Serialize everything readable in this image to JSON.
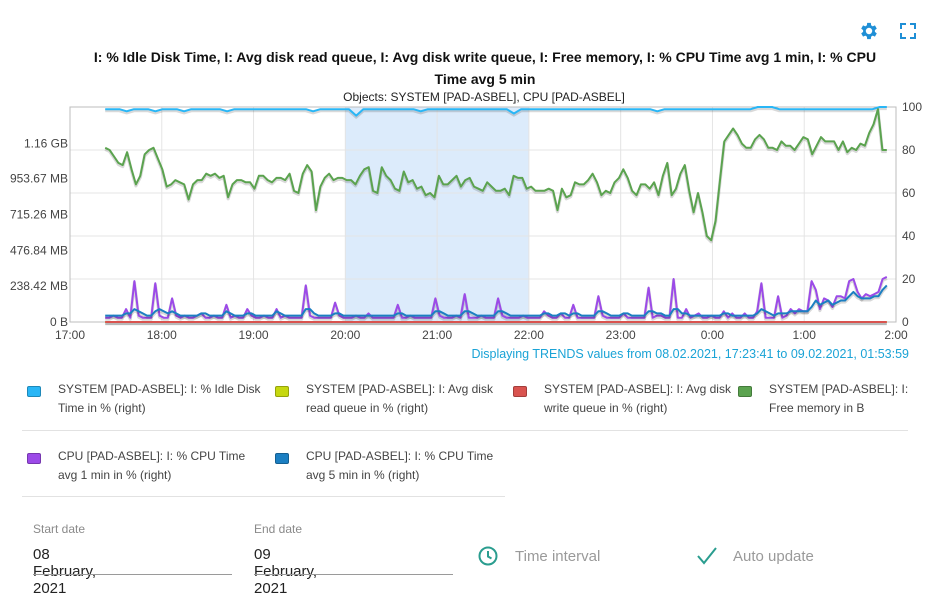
{
  "title": "I: % Idle Disk Time, I: Avg disk read queue, I: Avg disk write queue, I: Free memory, I: % CPU Time avg 1 min, I: % CPU Time avg 5 min",
  "subtitle": "Objects: SYSTEM [PAD-ASBEL], CPU [PAD-ASBEL]",
  "range_note": "Displaying TRENDS values from 08.02.2021, 17:23:41 to 09.02.2021, 01:53:59",
  "toolbar": {
    "settings_icon": "gear-icon",
    "fullscreen_icon": "fullscreen-icon"
  },
  "chart_data": {
    "type": "line",
    "x_ticks": [
      "17:00",
      "18:00",
      "19:00",
      "20:00",
      "21:00",
      "22:00",
      "23:00",
      "0:00",
      "1:00",
      "2:00"
    ],
    "xlim": [
      "17:00",
      "2:00"
    ],
    "y_left_ticks": [
      "0 B",
      "238.42 MB",
      "476.84 MB",
      "715.26 MB",
      "953.67 MB",
      "1.16 GB"
    ],
    "y_left_values_mb": [
      0,
      238.42,
      476.84,
      715.26,
      953.67,
      1187.84
    ],
    "y_left_lim_mb": [
      0,
      1430.51
    ],
    "y_right_ticks": [
      "0",
      "20",
      "40",
      "60",
      "80",
      "100"
    ],
    "y_right_lim": [
      0,
      100
    ],
    "data_start": "17:23",
    "data_end": "1:54",
    "highlight_band": [
      "20:00",
      "22:00"
    ],
    "grid": true,
    "series": [
      {
        "name": "SYSTEM [PAD-ASBEL]: I: % Idle Disk Time in % (right)",
        "axis": "right",
        "color": "#29b6f6",
        "values": [
          99,
          99,
          99,
          98,
          99,
          99,
          99,
          98,
          99,
          99,
          99,
          98,
          99,
          99,
          99,
          99,
          99,
          98,
          99,
          99,
          99,
          99,
          99,
          99,
          99,
          99,
          99,
          99,
          99,
          98,
          99,
          99,
          99,
          99,
          99,
          96,
          99,
          99,
          99,
          99,
          99,
          99,
          99,
          99,
          98,
          99,
          99,
          99,
          99,
          99,
          99,
          99,
          99,
          99,
          99,
          99,
          99,
          97,
          99,
          99,
          99,
          99,
          99,
          99,
          99,
          99,
          99,
          99,
          99,
          99,
          99,
          99,
          99,
          99,
          99,
          99,
          99,
          98,
          99,
          99,
          99,
          99,
          99,
          99,
          99,
          99,
          99,
          99,
          99,
          99,
          99,
          100,
          100,
          100,
          99,
          99,
          99,
          99,
          99,
          99,
          99,
          99,
          99,
          99,
          99,
          99,
          99,
          99,
          100,
          100
        ]
      },
      {
        "name": "SYSTEM [PAD-ASBEL]: I: Avg disk read queue in % (right)",
        "axis": "right",
        "color": "#c6d80f",
        "values": [
          0,
          0,
          0,
          0,
          0,
          0,
          0,
          0,
          0,
          0,
          0,
          0,
          0,
          0,
          0,
          0,
          0,
          0,
          0,
          0,
          0,
          0,
          0,
          0,
          0,
          0,
          0,
          0,
          0,
          0,
          0,
          0,
          0,
          0,
          0,
          0,
          0,
          0,
          0,
          0,
          0,
          0,
          0,
          0,
          0,
          0,
          0,
          0,
          0,
          0,
          0,
          0,
          0,
          0,
          0,
          0,
          0,
          0,
          0,
          0,
          0,
          0,
          0,
          0,
          0,
          0,
          0,
          0,
          0,
          0,
          0,
          0,
          0,
          0,
          0,
          0,
          0,
          0,
          0,
          0,
          0,
          0,
          0,
          0,
          0,
          0,
          0,
          0,
          0,
          0,
          0,
          0,
          0,
          0,
          0,
          0,
          0,
          0,
          0,
          0,
          0,
          0,
          0,
          0,
          0,
          0,
          0,
          0,
          0,
          0
        ]
      },
      {
        "name": "SYSTEM [PAD-ASBEL]: I: Avg disk write queue in % (right)",
        "axis": "right",
        "color": "#d9534f",
        "values": [
          0,
          0,
          0,
          0,
          0,
          0,
          0,
          0,
          0,
          0,
          0,
          0,
          0,
          0,
          0,
          0,
          0,
          0,
          0,
          0,
          0,
          0,
          0,
          0,
          0,
          0,
          0,
          0,
          0,
          0,
          0,
          0,
          0,
          0,
          0,
          0,
          0,
          0,
          0,
          0,
          0,
          0,
          0,
          0,
          0,
          0,
          0,
          0,
          0,
          0,
          0,
          0,
          0,
          0,
          0,
          0,
          0,
          0,
          0,
          0,
          0,
          0,
          0,
          0,
          0,
          0,
          0,
          0,
          0,
          0,
          0,
          0,
          0,
          0,
          0,
          0,
          0,
          0,
          0,
          0,
          0,
          0,
          0,
          0,
          0,
          0,
          0,
          0,
          0,
          0,
          0,
          0,
          0,
          0,
          0,
          0,
          0,
          0,
          0,
          0,
          0,
          0,
          0,
          0,
          0,
          0,
          0,
          0,
          0,
          0
        ]
      },
      {
        "name": "SYSTEM [PAD-ASBEL]: I: Free memory in B",
        "axis": "left",
        "color": "#5ba34f",
        "values": [
          81,
          80,
          77,
          74,
          73,
          79,
          71,
          64,
          68,
          78,
          80,
          81,
          76,
          71,
          63,
          64,
          66,
          65,
          64,
          57,
          64,
          66,
          66,
          69,
          68,
          69,
          67,
          68,
          58,
          64,
          66,
          66,
          65,
          65,
          62,
          68,
          68,
          66,
          65,
          67,
          67,
          66,
          69,
          61,
          60,
          69,
          73,
          70,
          52,
          63,
          67,
          69,
          66,
          67,
          67,
          66,
          66,
          64,
          68,
          71,
          72,
          61,
          60,
          72,
          68,
          66,
          62,
          61,
          70,
          65,
          66,
          62,
          63,
          59,
          60,
          58,
          68,
          64,
          64,
          66,
          68,
          63,
          66,
          67,
          63,
          62,
          61,
          65,
          63,
          61,
          61,
          62,
          59,
          68,
          67,
          67,
          62,
          63,
          61,
          61,
          61,
          62,
          61,
          52,
          62,
          58,
          59,
          65,
          64,
          64,
          66,
          69,
          65,
          59,
          61,
          60,
          65,
          67,
          71,
          67,
          61,
          59,
          64,
          64,
          62,
          65,
          59,
          68,
          74,
          59,
          62,
          69,
          73,
          61,
          51,
          60,
          51,
          40,
          38,
          47,
          66,
          84,
          87,
          90,
          87,
          83,
          81,
          81,
          85,
          87,
          85,
          81,
          81,
          80,
          84,
          82,
          82,
          80,
          83,
          86,
          85,
          78,
          82,
          86,
          84,
          84,
          84,
          80,
          84,
          79,
          81,
          80,
          83,
          82,
          88,
          92,
          99,
          80,
          80
        ]
      },
      {
        "name": "CPU [PAD-ASBEL]: I: % CPU Time avg 1 min in % (right)",
        "axis": "right",
        "color": "#9c4ae8",
        "values": [
          2,
          2,
          3,
          2,
          2,
          6,
          2,
          19,
          3,
          2,
          2,
          2,
          18,
          3,
          2,
          2,
          11,
          3,
          2,
          3,
          2,
          2,
          3,
          4,
          2,
          2,
          3,
          2,
          2,
          8,
          2,
          3,
          2,
          2,
          6,
          3,
          2,
          2,
          3,
          2,
          2,
          6,
          2,
          3,
          2,
          2,
          2,
          2,
          17,
          3,
          2,
          2,
          2,
          2,
          2,
          9,
          3,
          2,
          2,
          2,
          3,
          2,
          2,
          4,
          2,
          2,
          2,
          2,
          2,
          2,
          8,
          2,
          2,
          3,
          2,
          2,
          2,
          2,
          2,
          11,
          3,
          2,
          2,
          2,
          3,
          2,
          13,
          2,
          2,
          2,
          3,
          2,
          2,
          2,
          11,
          3,
          2,
          2,
          2,
          2,
          3,
          2,
          2,
          2,
          2,
          5,
          3,
          2,
          2,
          4,
          2,
          2,
          8,
          2,
          2,
          2,
          2,
          2,
          12,
          3,
          2,
          2,
          2,
          2,
          4,
          2,
          2,
          2,
          2,
          2,
          16,
          2,
          3,
          3,
          2,
          2,
          20,
          2,
          2,
          6,
          2,
          3,
          4,
          2,
          2,
          3,
          2,
          2,
          5,
          2,
          4,
          2,
          2,
          4,
          2,
          2,
          5,
          18,
          2,
          2,
          2,
          12,
          2,
          3,
          6,
          4,
          6,
          5,
          5,
          19,
          15,
          6,
          11,
          10,
          7,
          12,
          12,
          11,
          19,
          20,
          14,
          11,
          13,
          12,
          13,
          14,
          20,
          21
        ]
      },
      {
        "name": "CPU [PAD-ASBEL]: I: % CPU Time avg 5 min in % (right)",
        "axis": "right",
        "color": "#1b7fc2",
        "values": [
          3,
          3,
          3,
          3,
          3,
          4,
          4,
          6,
          5,
          4,
          3,
          3,
          5,
          6,
          5,
          4,
          5,
          4,
          3,
          3,
          3,
          3,
          3,
          4,
          4,
          3,
          3,
          3,
          3,
          5,
          4,
          3,
          3,
          3,
          4,
          4,
          3,
          3,
          3,
          3,
          3,
          5,
          4,
          3,
          3,
          3,
          3,
          3,
          6,
          6,
          4,
          3,
          3,
          3,
          3,
          4,
          4,
          3,
          3,
          3,
          3,
          3,
          3,
          3,
          3,
          3,
          3,
          3,
          3,
          3,
          4,
          4,
          3,
          3,
          3,
          3,
          3,
          3,
          3,
          5,
          5,
          4,
          3,
          3,
          3,
          3,
          5,
          5,
          4,
          3,
          3,
          3,
          3,
          3,
          5,
          5,
          4,
          3,
          3,
          3,
          3,
          3,
          3,
          3,
          3,
          4,
          4,
          3,
          3,
          4,
          4,
          3,
          4,
          4,
          3,
          3,
          3,
          3,
          5,
          5,
          4,
          3,
          3,
          3,
          4,
          4,
          3,
          3,
          3,
          3,
          5,
          5,
          4,
          4,
          3,
          3,
          6,
          6,
          4,
          4,
          3,
          3,
          3,
          3,
          3,
          3,
          3,
          3,
          4,
          4,
          3,
          3,
          3,
          3,
          3,
          3,
          4,
          6,
          5,
          4,
          3,
          4,
          4,
          4,
          5,
          5,
          5,
          5,
          5,
          7,
          10,
          8,
          9,
          10,
          8,
          9,
          10,
          10,
          12,
          14,
          12,
          11,
          11,
          11,
          12,
          12,
          15,
          17
        ]
      }
    ]
  },
  "legend": [
    {
      "label": "SYSTEM [PAD-ASBEL]: I: % Idle Disk Time in % (right)",
      "color": "#29b6f6"
    },
    {
      "label": "SYSTEM [PAD-ASBEL]: I: Avg disk read queue in % (right)",
      "color": "#c6d80f"
    },
    {
      "label": "SYSTEM [PAD-ASBEL]: I: Avg disk write queue in % (right)",
      "color": "#d9534f"
    },
    {
      "label": "SYSTEM [PAD-ASBEL]: I: Free memory in B",
      "color": "#5ba34f"
    },
    {
      "label": "CPU [PAD-ASBEL]: I: % CPU Time avg 1 min in % (right)",
      "color": "#9c4ae8"
    },
    {
      "label": "CPU [PAD-ASBEL]: I: % CPU Time avg 5 min in % (right)",
      "color": "#1b7fc2"
    }
  ],
  "form": {
    "start_date": {
      "label": "Start date",
      "value": "08 February, 2021"
    },
    "end_date": {
      "label": "End date",
      "value": "09 February, 2021"
    },
    "time_interval": {
      "label": "Time interval",
      "icon": "clock-icon"
    },
    "auto_update": {
      "label": "Auto update",
      "icon": "checkmark-icon"
    }
  }
}
